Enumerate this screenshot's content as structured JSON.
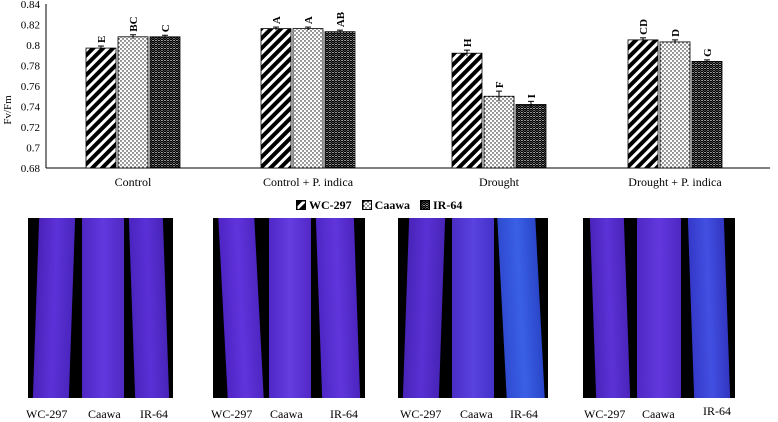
{
  "chart_data": {
    "type": "bar",
    "title": "",
    "xlabel": "",
    "ylabel": "Fv/Fm",
    "ylim": [
      0.68,
      0.84
    ],
    "yticks": [
      "0.68",
      "0.7",
      "0.72",
      "0.74",
      "0.76",
      "0.78",
      "0.8",
      "0.82",
      "0.84"
    ],
    "grid": false,
    "legend_position": "bottom",
    "categories": [
      "Control",
      "Control + P. indica",
      "Drought",
      "Drought + P. indica"
    ],
    "series": [
      {
        "name": "WC-297",
        "values": [
          0.797,
          0.816,
          0.792,
          0.805
        ],
        "errors": [
          0.002,
          0.0015,
          0.003,
          0.002
        ],
        "letters": [
          "E",
          "A",
          "H",
          "CD"
        ]
      },
      {
        "name": "Caawa",
        "values": [
          0.808,
          0.816,
          0.75,
          0.803
        ],
        "errors": [
          0.002,
          0.0015,
          0.005,
          0.002
        ],
        "letters": [
          "BC",
          "A",
          "F",
          "D"
        ]
      },
      {
        "name": "IR-64",
        "values": [
          0.808,
          0.813,
          0.742,
          0.784
        ],
        "errors": [
          0.0015,
          0.0015,
          0.003,
          0.0015
        ],
        "letters": [
          "C",
          "AB",
          "I",
          "G"
        ]
      }
    ]
  },
  "images": {
    "groups": [
      {
        "labels": [
          "WC-297",
          "Caawa",
          "IR-64"
        ]
      },
      {
        "labels": [
          "WC-297",
          "Caawa",
          "IR-64"
        ]
      },
      {
        "labels": [
          "WC-297",
          "Caawa",
          "IR-64"
        ]
      },
      {
        "labels": [
          "WC-297",
          "Caawa",
          "IR-64"
        ]
      }
    ],
    "colors": {
      "panel": "#000000",
      "leaf_violet": "#5a2fd6",
      "leaf_blue": "#3358e0"
    }
  }
}
